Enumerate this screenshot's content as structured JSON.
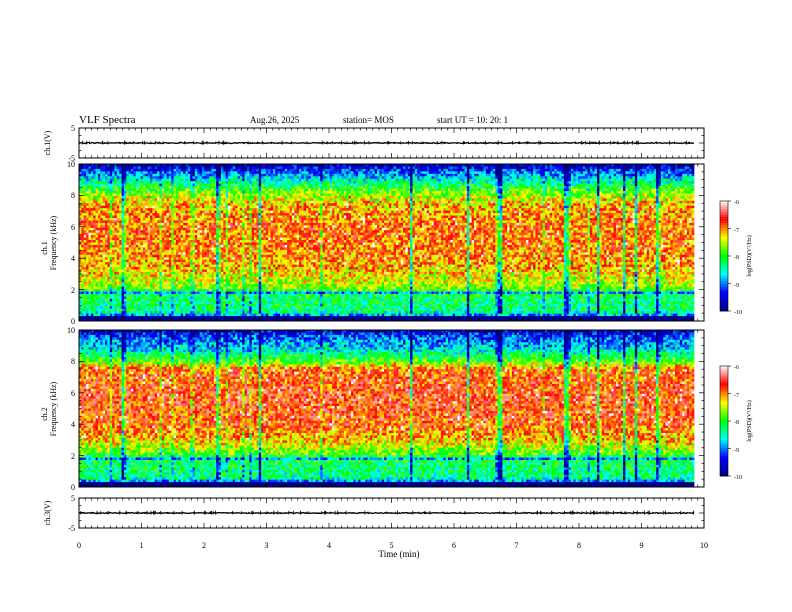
{
  "header": {
    "title": "VLF Spectra",
    "date": "Aug.26, 2025",
    "station": "station= MOS",
    "start": "start  UT =    10: 20: 1"
  },
  "chart_data": [
    {
      "type": "line",
      "id": "ch1-waveform",
      "ylabel": "ch.1(V)",
      "ylim": [
        -5,
        5
      ],
      "yticks": [
        "5",
        "-5"
      ],
      "xlim": [
        0,
        10
      ],
      "xunit": "min",
      "baseline_value": 0,
      "data_extent_min": 9.84
    },
    {
      "type": "heatmap",
      "id": "ch1-spectrogram",
      "ylabel_channel": "ch.1",
      "ylabel": "Frequency  (kHz)",
      "ylim": [
        0,
        10
      ],
      "yticks": [
        "0",
        "2",
        "4",
        "6",
        "8",
        "10"
      ],
      "xlim": [
        0,
        10
      ],
      "data_extent_min": 9.84,
      "colorbar": {
        "label": "log(PSD)(V²/Hz)",
        "range": [
          -10,
          -6
        ],
        "ticks": [
          "-6",
          "-7",
          "-8",
          "-9",
          "-10"
        ],
        "colors": [
          "#000080",
          "#0000ff",
          "#00ffff",
          "#00ff00",
          "#ffff00",
          "#ff0000",
          "#ffffff"
        ]
      },
      "profile_khz": [
        [
          0,
          -10
        ],
        [
          0.25,
          -10.3
        ],
        [
          0.35,
          -9.0
        ],
        [
          0.6,
          -8.3
        ],
        [
          1.7,
          -8.2
        ],
        [
          1.8,
          -8.9
        ],
        [
          2.0,
          -7.7
        ],
        [
          3.0,
          -7.3
        ],
        [
          4.0,
          -7.0
        ],
        [
          6.0,
          -6.9
        ],
        [
          7.5,
          -7.2
        ],
        [
          8.5,
          -8.0
        ],
        [
          9.3,
          -8.9
        ],
        [
          10,
          -9.7
        ]
      ]
    },
    {
      "type": "heatmap",
      "id": "ch2-spectrogram",
      "ylabel_channel": "ch.2",
      "ylabel": "Frequency  (kHz)",
      "ylim": [
        0,
        10
      ],
      "yticks": [
        "0",
        "2",
        "4",
        "6",
        "8",
        "10"
      ],
      "xlim": [
        0,
        10
      ],
      "data_extent_min": 9.84,
      "colorbar": {
        "label": "log(PSD)(V²/Hz)",
        "range": [
          -10,
          -6
        ],
        "ticks": [
          "-6",
          "-7",
          "-8",
          "-9",
          "-10"
        ],
        "colors": [
          "#000080",
          "#0000ff",
          "#00ffff",
          "#00ff00",
          "#ffff00",
          "#ff0000",
          "#ffffff"
        ]
      },
      "profile_khz": [
        [
          0,
          -10
        ],
        [
          0.25,
          -10.3
        ],
        [
          0.35,
          -9.0
        ],
        [
          0.6,
          -8.3
        ],
        [
          1.7,
          -8.2
        ],
        [
          1.8,
          -8.9
        ],
        [
          2.0,
          -7.9
        ],
        [
          3.0,
          -7.2
        ],
        [
          4.0,
          -6.8
        ],
        [
          6.0,
          -6.7
        ],
        [
          7.5,
          -6.9
        ],
        [
          8.0,
          -7.8
        ],
        [
          8.7,
          -8.6
        ],
        [
          9.5,
          -9.1
        ],
        [
          10,
          -9.6
        ]
      ]
    },
    {
      "type": "line",
      "id": "ch3-waveform",
      "ylabel": "ch.3(V)",
      "ylim": [
        -5,
        5
      ],
      "yticks": [
        "5",
        "-5"
      ],
      "xlim": [
        0,
        10
      ],
      "xunit": "min",
      "baseline_value": 0,
      "data_extent_min": 9.84,
      "xlabel": "Time  (min)",
      "xticks": [
        "0",
        "1",
        "2",
        "3",
        "4",
        "5",
        "6",
        "7",
        "8",
        "9",
        "10"
      ]
    }
  ]
}
